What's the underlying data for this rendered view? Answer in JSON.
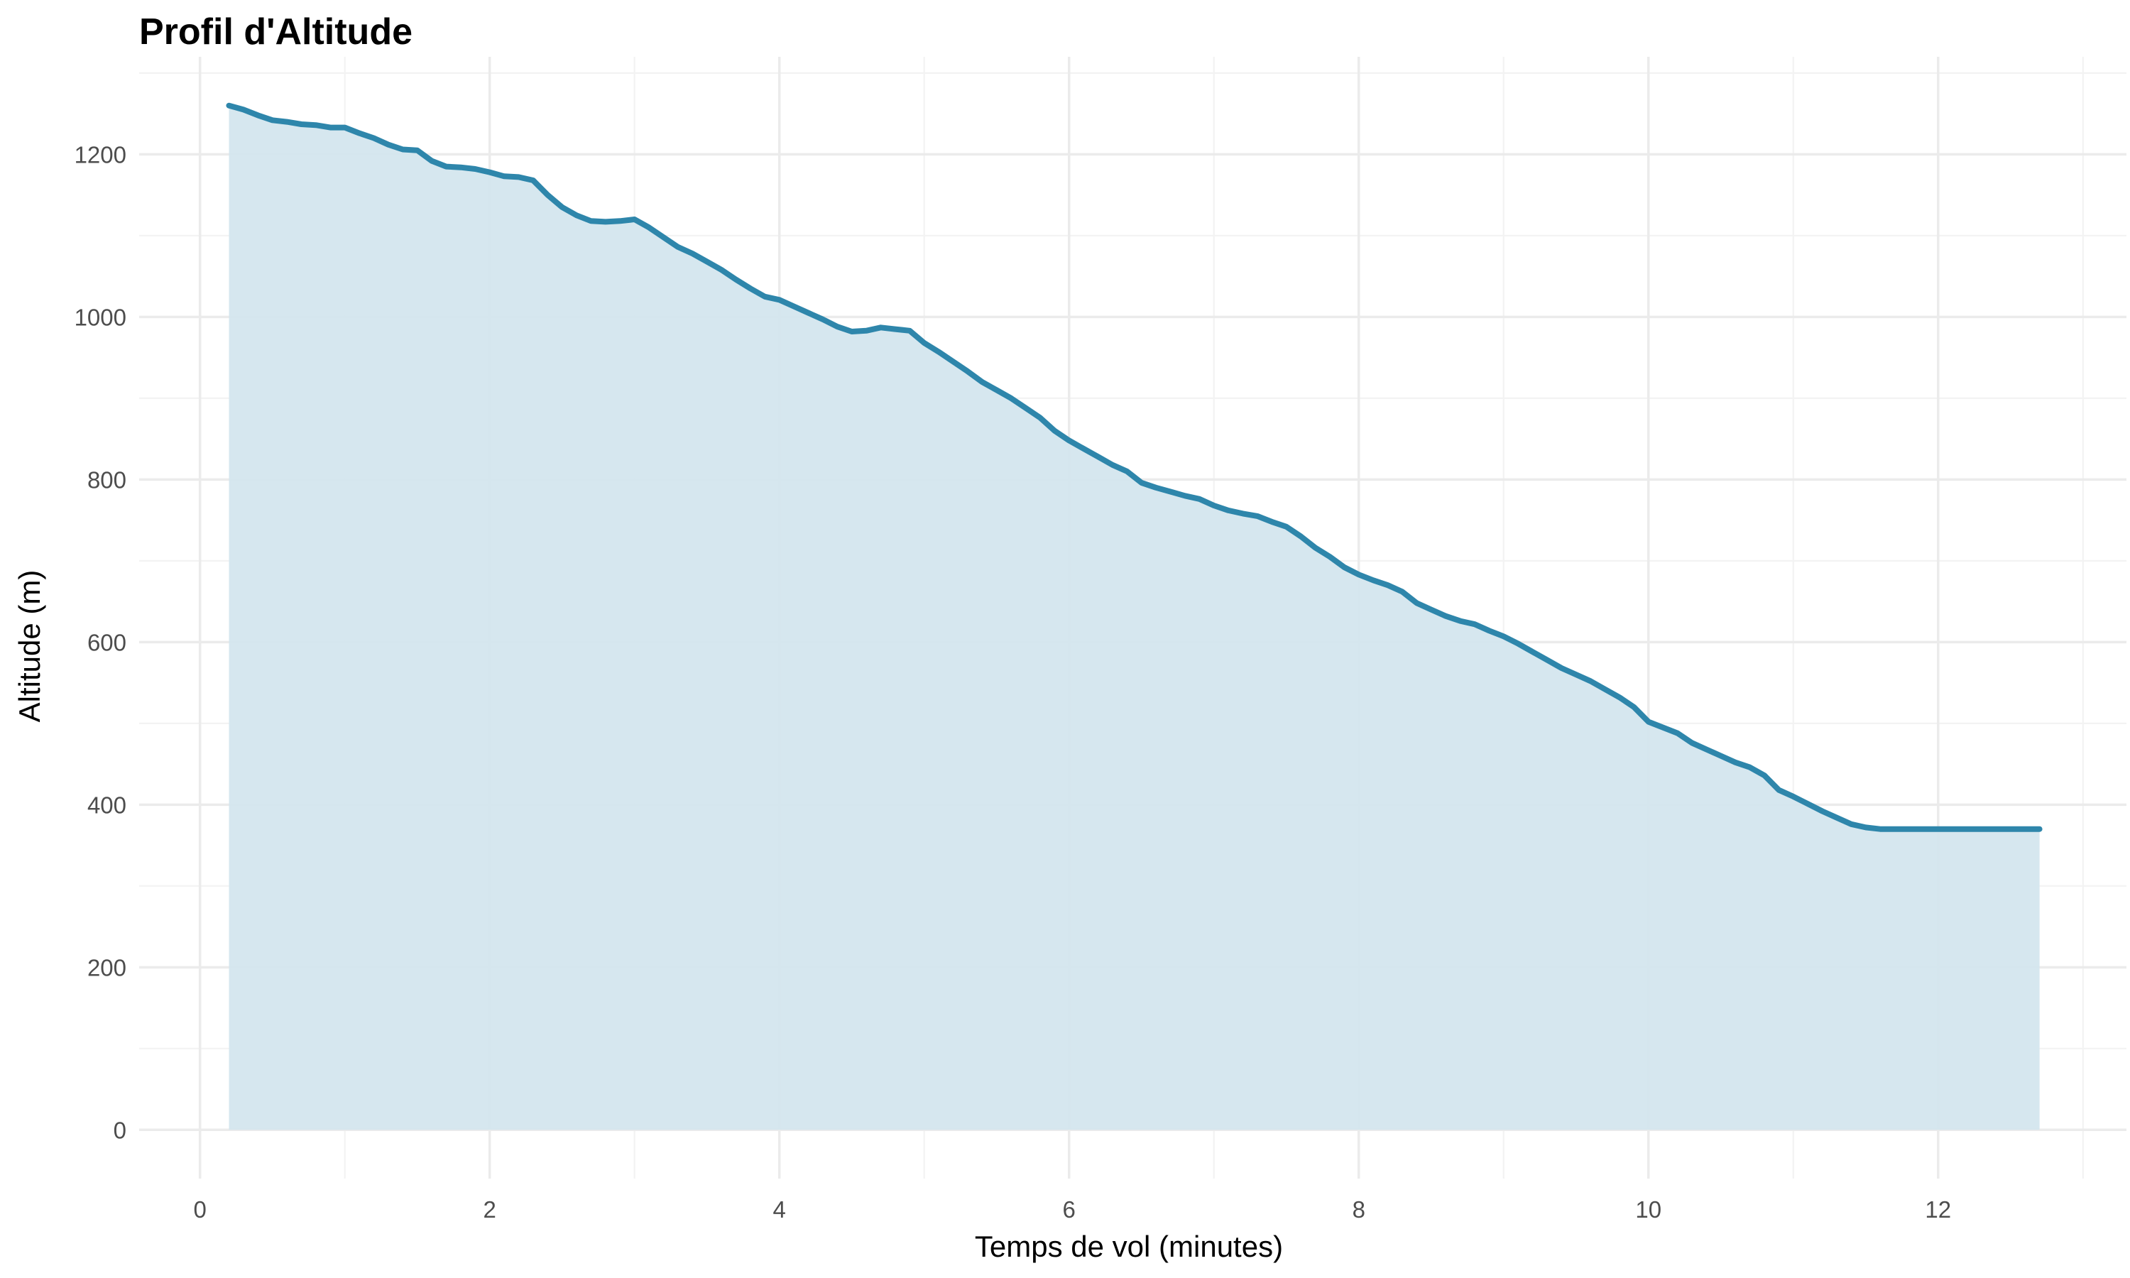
{
  "chart_data": {
    "type": "area",
    "title": "Profil d'Altitude",
    "xlabel": "Temps de vol (minutes)",
    "ylabel": "Altitude (m)",
    "xlim": [
      -0.42,
      13.3
    ],
    "ylim": [
      -60,
      1320
    ],
    "x_ticks": [
      0,
      2,
      4,
      6,
      8,
      10,
      12
    ],
    "y_ticks": [
      0,
      200,
      400,
      600,
      800,
      1000,
      1200
    ],
    "grid": true,
    "legend": "none",
    "colors": {
      "line": "#2E86AB",
      "fill": "#D4E6EE"
    },
    "series": [
      {
        "x": [
          0.2,
          0.3,
          0.4,
          0.5,
          0.6,
          0.7,
          0.8,
          0.9,
          1.0,
          1.1,
          1.2,
          1.3,
          1.4,
          1.5,
          1.6,
          1.7,
          1.8,
          1.9,
          2.0,
          2.1,
          2.2,
          2.3,
          2.4,
          2.5,
          2.6,
          2.7,
          2.8,
          2.9,
          3.0,
          3.1,
          3.2,
          3.3,
          3.4,
          3.5,
          3.6,
          3.7,
          3.8,
          3.9,
          4.0,
          4.1,
          4.2,
          4.3,
          4.4,
          4.5,
          4.6,
          4.7,
          4.8,
          4.9,
          5.0,
          5.1,
          5.2,
          5.3,
          5.4,
          5.5,
          5.6,
          5.7,
          5.8,
          5.9,
          6.0,
          6.1,
          6.2,
          6.3,
          6.4,
          6.5,
          6.6,
          6.7,
          6.8,
          6.9,
          7.0,
          7.1,
          7.2,
          7.3,
          7.4,
          7.5,
          7.6,
          7.7,
          7.8,
          7.9,
          8.0,
          8.1,
          8.2,
          8.3,
          8.4,
          8.5,
          8.6,
          8.7,
          8.8,
          8.9,
          9.0,
          9.1,
          9.2,
          9.3,
          9.4,
          9.5,
          9.6,
          9.7,
          9.8,
          9.9,
          10.0,
          10.1,
          10.2,
          10.3,
          10.4,
          10.5,
          10.6,
          10.7,
          10.8,
          10.9,
          11.0,
          11.1,
          11.2,
          11.3,
          11.4,
          11.5,
          11.6,
          11.7,
          11.8,
          11.9,
          12.0,
          12.1,
          12.2,
          12.3,
          12.4,
          12.5,
          12.6,
          12.7
        ],
        "y": [
          1260,
          1255,
          1248,
          1242,
          1240,
          1237,
          1236,
          1233,
          1233,
          1226,
          1220,
          1212,
          1206,
          1205,
          1192,
          1185,
          1184,
          1182,
          1178,
          1173,
          1172,
          1168,
          1150,
          1135,
          1125,
          1118,
          1117,
          1118,
          1120,
          1110,
          1098,
          1086,
          1078,
          1068,
          1058,
          1046,
          1035,
          1025,
          1021,
          1013,
          1005,
          997,
          988,
          982,
          983,
          987,
          985,
          983,
          968,
          957,
          945,
          933,
          920,
          910,
          900,
          888,
          876,
          860,
          848,
          838,
          828,
          818,
          810,
          796,
          790,
          785,
          780,
          776,
          768,
          762,
          758,
          755,
          748,
          742,
          730,
          716,
          705,
          692,
          683,
          676,
          670,
          662,
          648,
          640,
          632,
          626,
          622,
          614,
          607,
          598,
          588,
          578,
          568,
          560,
          552,
          542,
          532,
          520,
          502,
          495,
          488,
          476,
          468,
          460,
          452,
          446,
          436,
          418,
          410,
          401,
          392,
          384,
          376,
          372,
          370,
          370,
          370,
          370,
          370,
          370,
          370,
          370,
          370,
          370,
          370,
          370
        ]
      }
    ]
  }
}
